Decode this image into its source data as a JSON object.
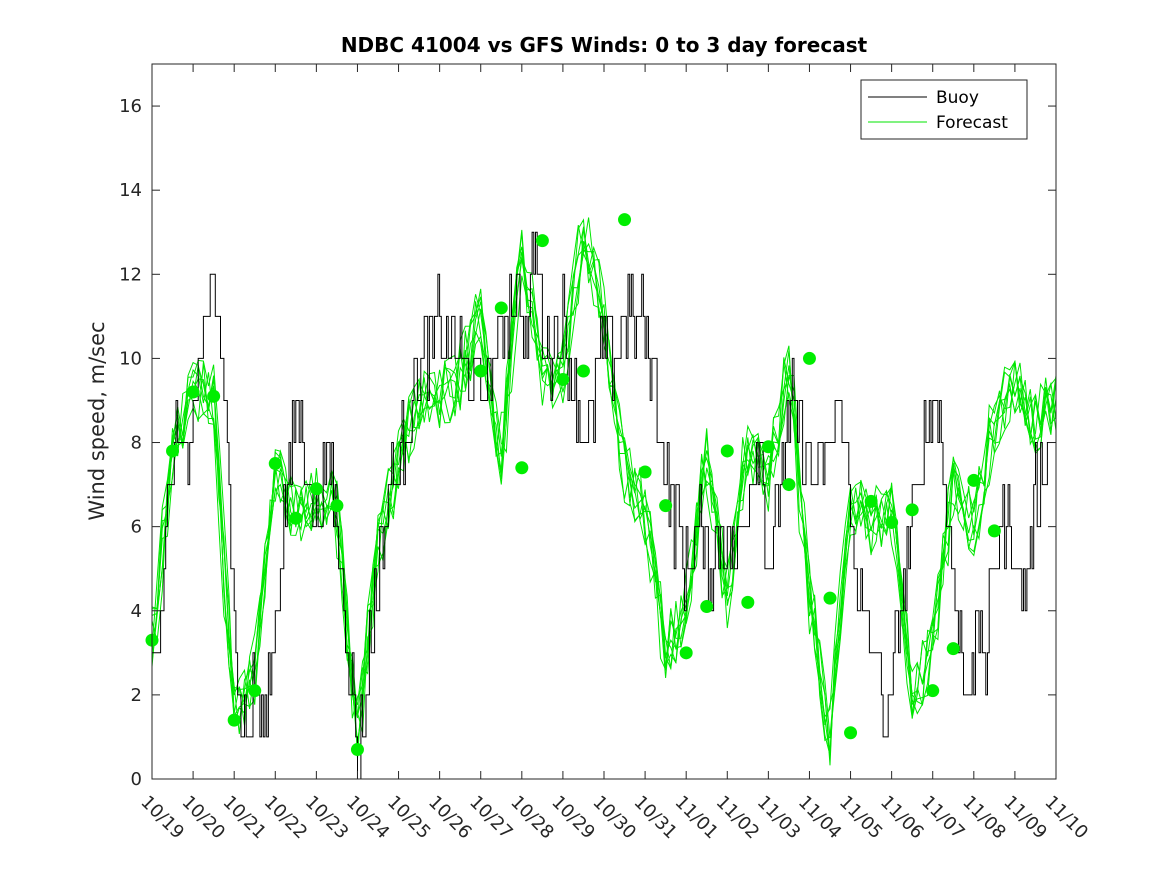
{
  "chart_data": {
    "type": "line",
    "title": "NDBC 41004 vs GFS Winds: 0 to 3 day forecast",
    "xlabel": "",
    "ylabel": "Wind speed, m/sec",
    "ylim": [
      0,
      17
    ],
    "xlim": [
      0,
      22
    ],
    "yticks": [
      0,
      2,
      4,
      6,
      8,
      10,
      12,
      14,
      16
    ],
    "xtick_labels": [
      "10/19",
      "10/20",
      "10/21",
      "10/22",
      "10/23",
      "10/24",
      "10/25",
      "10/26",
      "10/27",
      "10/28",
      "10/29",
      "10/30",
      "10/31",
      "11/01",
      "11/02",
      "11/03",
      "11/04",
      "11/05",
      "11/06",
      "11/07",
      "11/08",
      "11/09",
      "11/10"
    ],
    "legend": {
      "position": "top-right",
      "entries": [
        {
          "label": "Buoy",
          "color": "#000000"
        },
        {
          "label": "Forecast",
          "color": "#00e600"
        }
      ]
    },
    "colors": {
      "buoy": "#000000",
      "forecast": "#00e600",
      "markers": "#00ee00"
    },
    "buoy_anchor_days": [
      0,
      0.3,
      0.5,
      0.7,
      0.9,
      1.1,
      1.3,
      1.45,
      1.6,
      1.8,
      2.0,
      2.1,
      2.3,
      2.5,
      2.7,
      3.0,
      3.3,
      3.5,
      3.7,
      4.0,
      4.2,
      4.4,
      4.6,
      4.8,
      5.0,
      5.2,
      5.5,
      5.8,
      6.0,
      6.3,
      6.6,
      7.0,
      7.5,
      8.0,
      8.3,
      8.6,
      8.9,
      9.1,
      9.3,
      9.5,
      9.7,
      10.0,
      10.3,
      10.6,
      10.9,
      11.2,
      11.5,
      11.9,
      12.2,
      12.5,
      12.8,
      13.0,
      13.3,
      13.6,
      13.9,
      14.2,
      14.5,
      14.8,
      15.0,
      15.3,
      15.6,
      15.9,
      16.2,
      16.5,
      16.8,
      17.0,
      17.3,
      17.6,
      17.9,
      18.2,
      18.5,
      18.8,
      19.0,
      19.2,
      19.4,
      19.6,
      19.8,
      20.0,
      20.3,
      20.6,
      20.9,
      21.2,
      21.5,
      22.0
    ],
    "buoy_anchor_values": [
      3,
      5,
      7.5,
      8.5,
      7,
      9,
      11,
      12,
      11,
      8,
      5,
      2,
      1,
      2,
      1,
      4,
      7,
      9,
      8,
      6,
      7,
      7,
      5,
      3,
      0.5,
      2,
      5,
      7,
      7.5,
      9,
      10,
      11,
      10,
      9,
      10,
      11,
      12,
      10,
      13,
      11,
      10,
      11,
      9,
      8,
      10,
      10,
      11,
      11,
      10,
      7,
      6,
      5,
      6,
      5,
      6,
      5,
      7,
      8,
      5,
      7,
      9,
      8,
      7,
      8,
      9,
      6,
      4,
      3,
      1,
      4,
      6,
      8,
      9,
      8,
      6,
      4,
      2,
      3,
      3,
      6,
      6,
      4,
      7,
      8,
      8.5
    ],
    "forecast_anchor_days": [
      0,
      0.5,
      1.0,
      1.5,
      2.0,
      2.5,
      3.0,
      3.5,
      4.0,
      4.5,
      5.0,
      5.5,
      6.0,
      6.5,
      7.0,
      7.5,
      8.0,
      8.5,
      9.0,
      9.5,
      10.0,
      10.5,
      11.0,
      11.5,
      12.0,
      12.5,
      13.0,
      13.5,
      14.0,
      14.5,
      15.0,
      15.5,
      16.0,
      16.5,
      17.0,
      17.5,
      18.0,
      18.5,
      19.0,
      19.5,
      20.0,
      20.5,
      21.0,
      21.5,
      22.0
    ],
    "forecast_anchor_values": [
      3.2,
      7.8,
      9.2,
      9.2,
      1.5,
      2.5,
      7.5,
      6.2,
      6.8,
      6.5,
      1.0,
      5.5,
      7.5,
      9.0,
      9.0,
      9.5,
      11.0,
      7.5,
      12.8,
      9.5,
      9.6,
      13.2,
      11.0,
      7.3,
      6.5,
      3.0,
      4.0,
      7.8,
      4.2,
      7.9,
      7.0,
      10.0,
      4.3,
      1.0,
      6.6,
      6.1,
      6.5,
      2.0,
      3.0,
      7.1,
      5.9,
      8.5,
      9.5,
      8.5,
      9.0
    ],
    "forecast_runs": 8,
    "marker_points": [
      {
        "day": 0.0,
        "value": 3.3
      },
      {
        "day": 0.5,
        "value": 7.8
      },
      {
        "day": 1.0,
        "value": 9.2
      },
      {
        "day": 1.5,
        "value": 9.1
      },
      {
        "day": 2.0,
        "value": 1.4
      },
      {
        "day": 2.5,
        "value": 2.1
      },
      {
        "day": 3.0,
        "value": 7.5
      },
      {
        "day": 3.5,
        "value": 6.2
      },
      {
        "day": 4.0,
        "value": 6.9
      },
      {
        "day": 4.5,
        "value": 6.5
      },
      {
        "day": 5.0,
        "value": 0.7
      },
      {
        "day": 8.0,
        "value": 9.7
      },
      {
        "day": 8.5,
        "value": 11.2
      },
      {
        "day": 9.0,
        "value": 7.4
      },
      {
        "day": 9.5,
        "value": 12.8
      },
      {
        "day": 10.0,
        "value": 9.5
      },
      {
        "day": 10.5,
        "value": 9.7
      },
      {
        "day": 11.5,
        "value": 13.3
      },
      {
        "day": 12.0,
        "value": 7.3
      },
      {
        "day": 12.5,
        "value": 6.5
      },
      {
        "day": 13.0,
        "value": 3.0
      },
      {
        "day": 13.5,
        "value": 4.1
      },
      {
        "day": 14.0,
        "value": 7.8
      },
      {
        "day": 14.5,
        "value": 4.2
      },
      {
        "day": 15.0,
        "value": 7.9
      },
      {
        "day": 15.5,
        "value": 7.0
      },
      {
        "day": 16.0,
        "value": 10.0
      },
      {
        "day": 16.5,
        "value": 4.3
      },
      {
        "day": 17.0,
        "value": 1.1
      },
      {
        "day": 17.5,
        "value": 6.6
      },
      {
        "day": 18.0,
        "value": 6.1
      },
      {
        "day": 18.5,
        "value": 6.4
      },
      {
        "day": 19.0,
        "value": 2.1
      },
      {
        "day": 19.5,
        "value": 3.1
      },
      {
        "day": 20.0,
        "value": 7.1
      },
      {
        "day": 20.5,
        "value": 5.9
      }
    ]
  }
}
